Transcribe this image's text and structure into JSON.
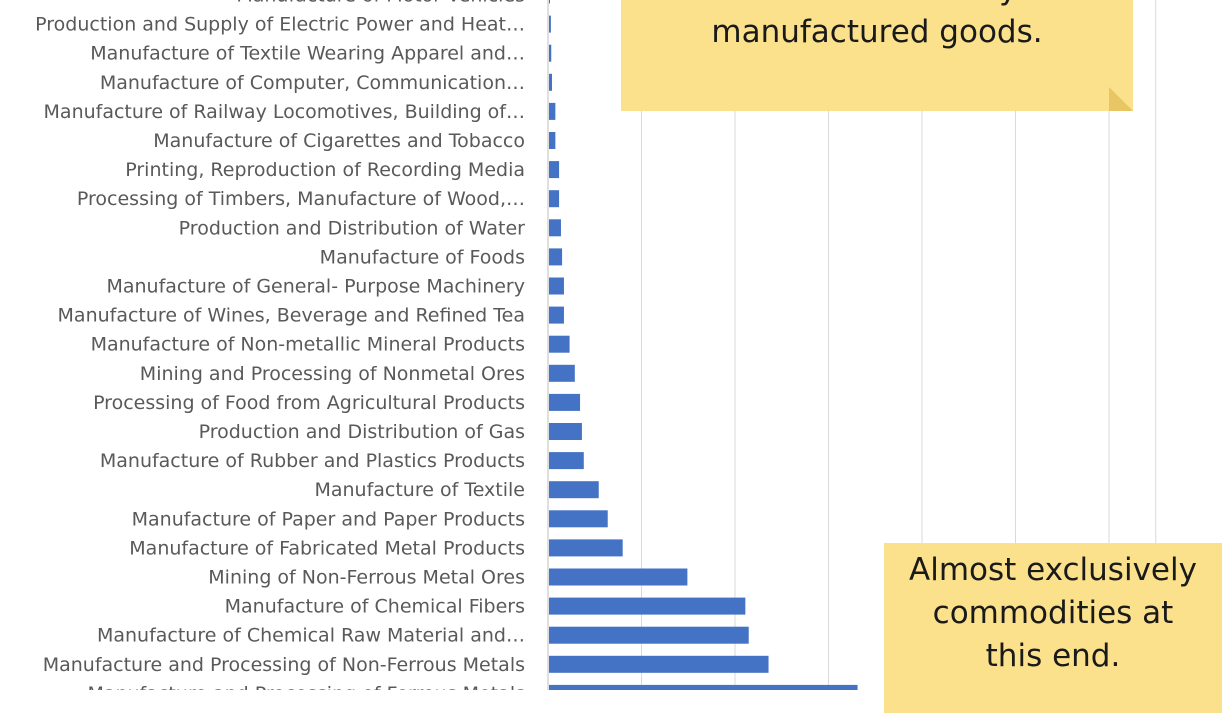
{
  "chart_data": {
    "type": "bar",
    "orientation": "horizontal",
    "grid": true,
    "categories": [
      "Manufacture of Motor Vehicles",
      "Production and Supply of Electric Power and Heat…",
      "Manufacture of Textile Wearing Apparel and…",
      "Manufacture of Computer, Communication…",
      "Manufacture of Railway Locomotives, Building of…",
      "Manufacture of Cigarettes and Tobacco",
      "Printing, Reproduction of Recording Media",
      "Processing of Timbers, Manufacture of Wood,…",
      "Production and Distribution of Water",
      "Manufacture of Foods",
      "Manufacture of General- Purpose Machinery",
      "Manufacture of Wines, Beverage and Refined Tea",
      "Manufacture of Non-metallic Mineral Products",
      "Mining and Processing of Nonmetal Ores",
      "Processing of Food from Agricultural Products",
      "Production and Distribution of Gas",
      "Manufacture of Rubber and Plastics Products",
      "Manufacture of Textile",
      "Manufacture of Paper and Paper Products",
      "Manufacture of Fabricated Metal Products",
      "Mining of Non-Ferrous Metal Ores",
      "Manufacture of Chemical Fibers",
      "Manufacture of Chemical Raw Material and…",
      "Manufacture and Processing of Non-Ferrous Metals",
      "Manufacture and Processing of Ferrous Metals"
    ],
    "values": [
      0.4,
      1.0,
      1.2,
      1.6,
      3.4,
      3.4,
      5.4,
      5.4,
      6.4,
      7.0,
      8.0,
      8.0,
      11.0,
      13.8,
      16.6,
      17.6,
      18.6,
      26.6,
      31.4,
      39.4,
      74.0,
      105.0,
      106.8,
      117.4,
      165.0
    ],
    "xlim": [
      0,
      325
    ],
    "gridlines": [
      50,
      100,
      150,
      200,
      250,
      300,
      325
    ],
    "bar_color": "#4472c4"
  },
  "annotations": {
    "top_note": [
      "Derive from many",
      "manufactured goods."
    ],
    "bottom_note": [
      "Almost exclusively",
      "commodities at",
      "this end."
    ]
  }
}
